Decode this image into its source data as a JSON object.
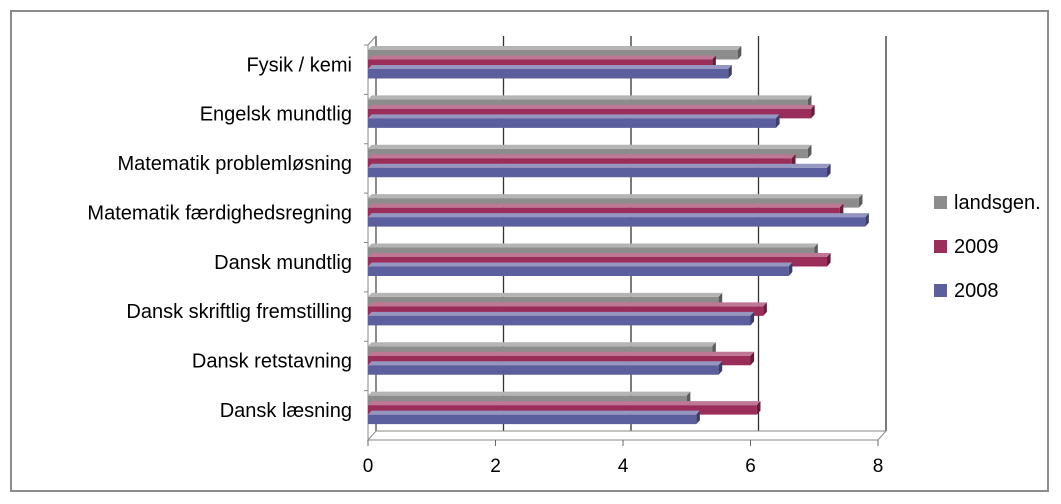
{
  "chart_data": {
    "type": "bar",
    "orientation": "horizontal",
    "style": "3d-clustered",
    "categories": [
      "Fysik / kemi",
      "Engelsk mundtlig",
      "Matematik problemløsning",
      "Matematik færdighedsregning",
      "Dansk mundtlig",
      "Dansk skriftlig fremstilling",
      "Dansk retstavning",
      "Dansk læsning"
    ],
    "series": [
      {
        "name": "landsgen.",
        "color": "#8c8c8c",
        "values": [
          5.8,
          6.9,
          6.9,
          7.7,
          7.0,
          5.5,
          5.4,
          5.0
        ]
      },
      {
        "name": "2009",
        "color": "#9b2d5a",
        "values": [
          5.4,
          6.95,
          6.65,
          7.4,
          7.2,
          6.2,
          6.0,
          6.1
        ]
      },
      {
        "name": "2008",
        "color": "#5c5f9e",
        "values": [
          5.65,
          6.4,
          7.2,
          7.8,
          6.6,
          6.0,
          5.5,
          5.15
        ]
      }
    ],
    "xlim": [
      0,
      8
    ],
    "xticks": [
      "0",
      "2",
      "4",
      "6",
      "8"
    ],
    "grid": true,
    "legend_position": "right",
    "title": "",
    "xlabel": "",
    "ylabel": ""
  }
}
